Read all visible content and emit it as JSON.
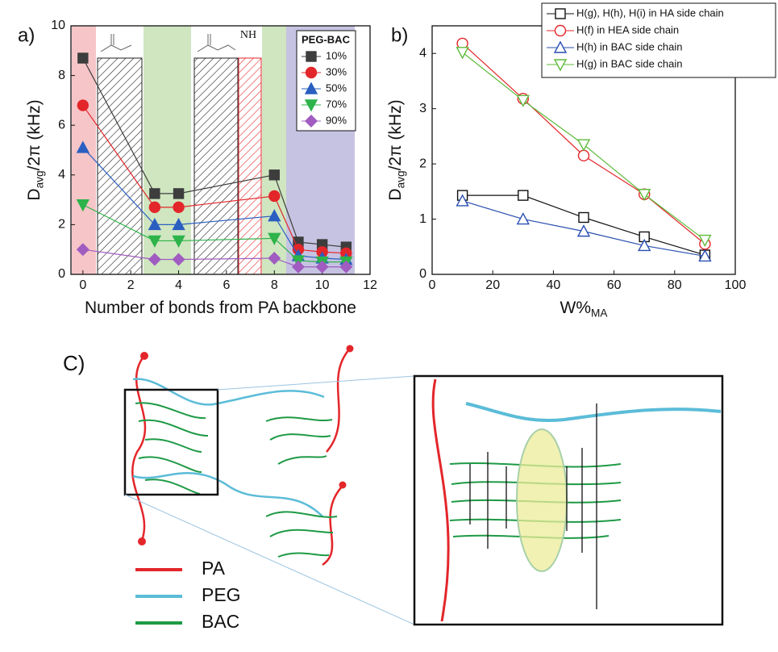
{
  "chart_data": [
    {
      "type": "line",
      "panel_label": "a)",
      "x_label": "Number of bonds from PA backbone",
      "y_label": [
        "D",
        "avg",
        "/2π (kHz)"
      ],
      "x": [
        0,
        3,
        4,
        8,
        9,
        10,
        11
      ],
      "xlim": [
        -0.5,
        12
      ],
      "ylim": [
        0,
        10
      ],
      "xticks": [
        0,
        2,
        4,
        6,
        8,
        10,
        12
      ],
      "yticks": [
        0,
        2,
        4,
        6,
        8,
        10
      ],
      "legend_title": "PEG-BAC",
      "annotation": "NH",
      "markers_filled": true,
      "series": [
        {
          "name": "10%",
          "color": "#3d3d3d",
          "marker": "square",
          "values": [
            8.7,
            3.25,
            3.25,
            4.0,
            1.3,
            1.2,
            1.1
          ]
        },
        {
          "name": "30%",
          "color": "#e3262a",
          "marker": "circle",
          "values": [
            6.8,
            2.7,
            2.7,
            3.15,
            1.0,
            0.9,
            0.85
          ]
        },
        {
          "name": "50%",
          "color": "#2a5fc1",
          "marker": "triangle",
          "values": [
            5.1,
            2.0,
            2.0,
            2.35,
            0.75,
            0.65,
            0.6
          ]
        },
        {
          "name": "70%",
          "color": "#2db34a",
          "marker": "triangle-down",
          "values": [
            2.8,
            1.35,
            1.35,
            1.45,
            0.55,
            0.5,
            0.5
          ]
        },
        {
          "name": "90%",
          "color": "#a05cc0",
          "marker": "diamond",
          "values": [
            1.0,
            0.6,
            0.6,
            0.65,
            0.3,
            0.3,
            0.3
          ]
        }
      ]
    },
    {
      "type": "line",
      "panel_label": "b)",
      "x_label": [
        "W%",
        "MA"
      ],
      "y_label": [
        "D",
        "avg",
        "/2π  (kHz)"
      ],
      "x": [
        10,
        30,
        50,
        70,
        90
      ],
      "xlim": [
        0,
        100
      ],
      "ylim": [
        0,
        4.5
      ],
      "xticks": [
        0,
        20,
        40,
        60,
        80,
        100
      ],
      "yticks": [
        0,
        1,
        2,
        3,
        4
      ],
      "markers_filled": false,
      "series": [
        {
          "name": "H(g), H(h), H(i) in HA side chain",
          "color": "#111111",
          "marker": "square",
          "values": [
            1.43,
            1.43,
            1.03,
            0.68,
            0.35
          ]
        },
        {
          "name": "H(f) in HEA side chain",
          "color": "#e3262a",
          "marker": "circle",
          "values": [
            4.18,
            3.18,
            2.15,
            1.45,
            0.55
          ]
        },
        {
          "name": "H(h) in BAC side chain",
          "color": "#2a4fb0",
          "marker": "triangle",
          "values": [
            1.33,
            1.0,
            0.78,
            0.52,
            0.33
          ]
        },
        {
          "name": "H(g) in BAC side chain",
          "color": "#5dbb3a",
          "marker": "triangle-down",
          "values": [
            4.02,
            3.15,
            2.35,
            1.45,
            0.62
          ]
        }
      ]
    }
  ],
  "diagram": {
    "label": "C)",
    "legend": [
      {
        "label": "PA",
        "color": "#e3262a"
      },
      {
        "label": "PEG",
        "color": "#5bbcd8"
      },
      {
        "label": "BAC",
        "color": "#1e9a45"
      }
    ]
  }
}
